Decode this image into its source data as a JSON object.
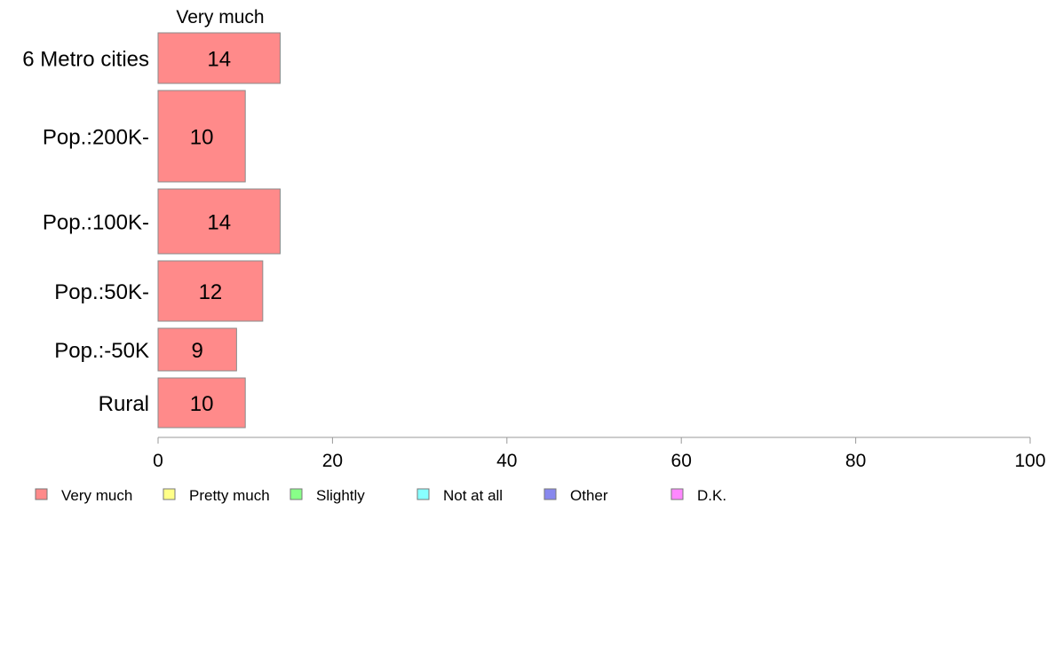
{
  "chart_data": {
    "type": "bar",
    "orientation": "horizontal",
    "stacked": true,
    "column_title": "Very much",
    "categories": [
      "6 Metro cities",
      "Pop.:200K-",
      "Pop.:100K-",
      "Pop.:50K-",
      "Pop.:-50K",
      "Rural"
    ],
    "series": [
      {
        "name": "Very much",
        "color": "#ff8a8a",
        "values": [
          14,
          10,
          14,
          12,
          9,
          10
        ]
      },
      {
        "name": "Pretty much",
        "color": "#ffff88"
      },
      {
        "name": "Slightly",
        "color": "#88ff88"
      },
      {
        "name": "Not at all",
        "color": "#88ffff"
      },
      {
        "name": "Other",
        "color": "#8888ee"
      },
      {
        "name": "D.K.",
        "color": "#ff88ff"
      }
    ],
    "xlim": [
      0,
      100
    ],
    "xticks": [
      "0",
      "20",
      "40",
      "60",
      "80",
      "100"
    ],
    "grid": false,
    "legend_position": "bottom-left"
  }
}
